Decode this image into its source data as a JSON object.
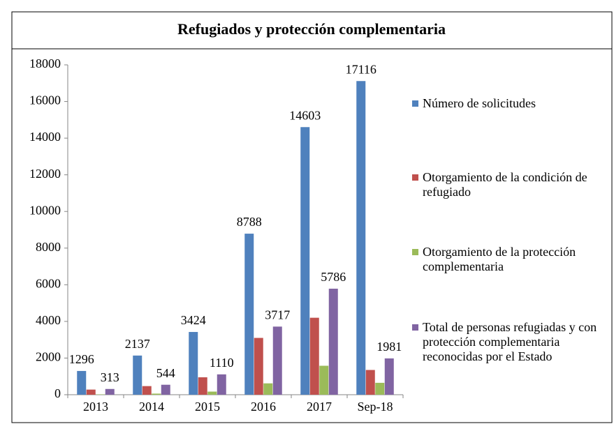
{
  "chart_data": {
    "type": "bar",
    "title": "Refugiados y protección complementaria",
    "categories": [
      "2013",
      "2014",
      "2015",
      "2016",
      "2017",
      "Sep-18"
    ],
    "series": [
      {
        "name": "Número de solicitudes",
        "color": "#4f81bd",
        "values": [
          1296,
          2137,
          3424,
          8788,
          14603,
          17116
        ],
        "data_labels": true
      },
      {
        "name": "Otorgamiento de la condición de refugiado",
        "color": "#c0504d",
        "values": [
          280,
          470,
          950,
          3100,
          4200,
          1350
        ],
        "data_labels": false
      },
      {
        "name": "Otorgamiento de la protección complementaria",
        "color": "#9bbb59",
        "values": [
          20,
          60,
          170,
          620,
          1580,
          650
        ],
        "data_labels": false
      },
      {
        "name": "Total de personas refugiadas y con protección complementaria reconocidas por el Estado",
        "color": "#8064a2",
        "values": [
          313,
          544,
          1110,
          3717,
          5786,
          1981
        ],
        "data_labels": true
      }
    ],
    "ylim": [
      0,
      18000
    ],
    "yticks": [
      0,
      2000,
      4000,
      6000,
      8000,
      10000,
      12000,
      14000,
      16000,
      18000
    ],
    "grid": false,
    "legend": "right"
  }
}
